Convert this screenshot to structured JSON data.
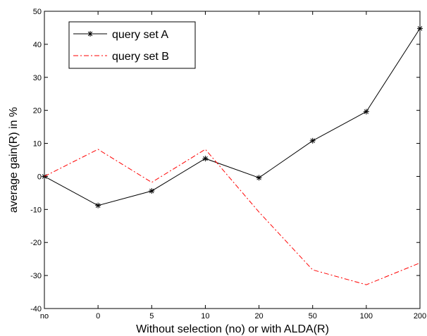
{
  "chart_data": {
    "type": "line",
    "xlabel": "Without selection (no) or with ALDA(R)",
    "ylabel": "average gain(R) in %",
    "categories": [
      "no",
      "0",
      "5",
      "10",
      "20",
      "50",
      "100",
      "200"
    ],
    "ylim": [
      -40,
      50
    ],
    "yticks": [
      -40,
      -30,
      -20,
      -10,
      0,
      10,
      20,
      30,
      40,
      50
    ],
    "grid": false,
    "legend_position": "top-left",
    "series": [
      {
        "name": "query set A",
        "color": "#000000",
        "line_style": "solid",
        "marker": "star",
        "values": [
          0,
          -8.8,
          -4.4,
          5.4,
          -0.4,
          10.8,
          19.6,
          44.8
        ]
      },
      {
        "name": "query set B",
        "color": "#ff0000",
        "line_style": "dash-dot",
        "marker": "none",
        "values": [
          0,
          8.2,
          -1.8,
          8.2,
          -10.8,
          -28.3,
          -32.8,
          -26.2
        ]
      }
    ]
  }
}
